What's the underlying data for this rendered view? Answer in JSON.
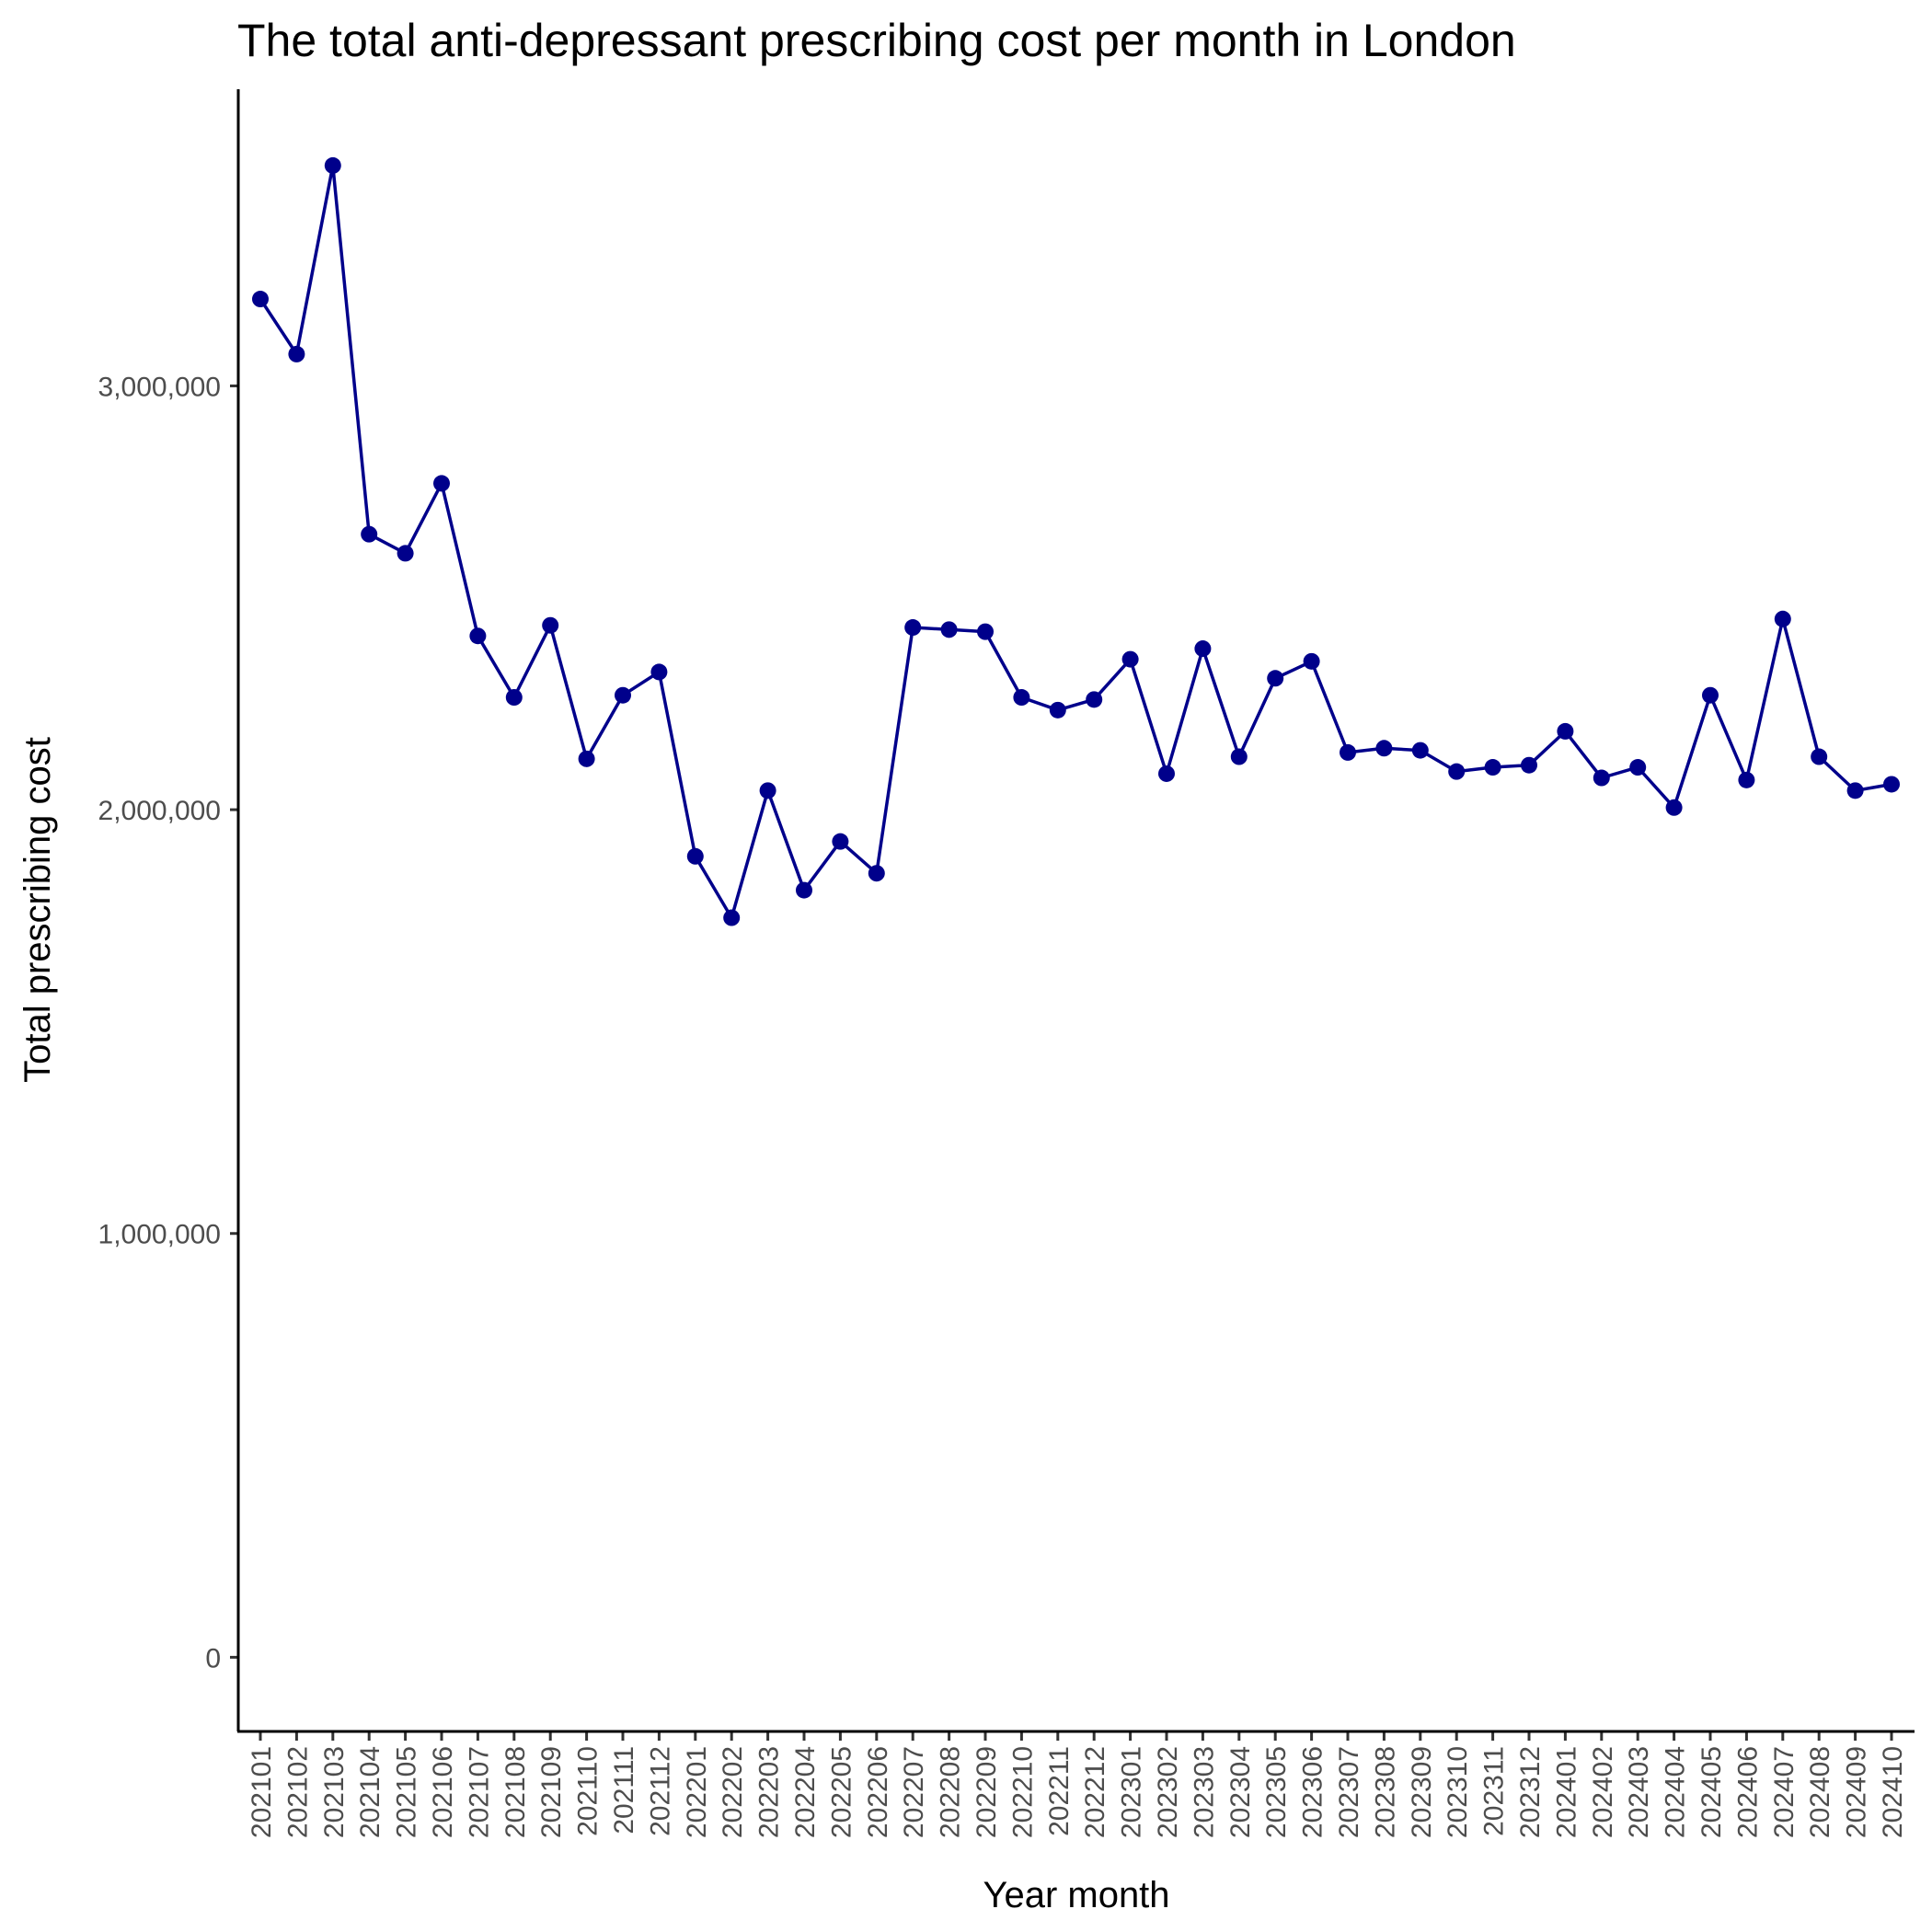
{
  "chart_data": {
    "type": "line",
    "title": "The total anti-depressant prescribing cost per month in London",
    "xlabel": "Year month",
    "ylabel": "Total prescribing cost",
    "x": [
      "202101",
      "202102",
      "202103",
      "202104",
      "202105",
      "202106",
      "202107",
      "202108",
      "202109",
      "202110",
      "202111",
      "202112",
      "202201",
      "202202",
      "202203",
      "202204",
      "202205",
      "202206",
      "202207",
      "202208",
      "202209",
      "202210",
      "202211",
      "202212",
      "202301",
      "202302",
      "202303",
      "202304",
      "202305",
      "202306",
      "202307",
      "202308",
      "202309",
      "202310",
      "202311",
      "202312",
      "202401",
      "202402",
      "202403",
      "202404",
      "202405",
      "202406",
      "202407",
      "202408",
      "202409",
      "202410"
    ],
    "series": [
      {
        "values": [
          3205000,
          3075000,
          3520000,
          2650000,
          2605000,
          2770000,
          2410000,
          2265000,
          2435000,
          2120000,
          2270000,
          2325000,
          1890000,
          1745000,
          2045000,
          1810000,
          1925000,
          1850000,
          2430000,
          2425000,
          2420000,
          2265000,
          2235000,
          2260000,
          2355000,
          2085000,
          2380000,
          2125000,
          2310000,
          2350000,
          2135000,
          2145000,
          2140000,
          2090000,
          2100000,
          2105000,
          2185000,
          2075000,
          2100000,
          2005000,
          2270000,
          2070000,
          2450000,
          2125000,
          2045000,
          2060000
        ],
        "color": "#00008B"
      }
    ],
    "ylim": [
      -175000,
      3700000
    ],
    "yticks": [
      0,
      1000000,
      2000000,
      3000000
    ],
    "ytick_labels": [
      "0",
      "1,000,000",
      "2,000,000",
      "3,000,000"
    ],
    "grid": false,
    "legend": "none"
  }
}
